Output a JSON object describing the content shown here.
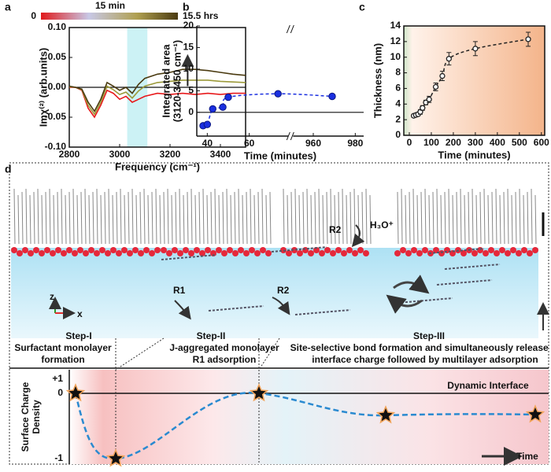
{
  "chart_data": [
    {
      "type": "line",
      "panel": "a",
      "x_label": "Frequency (cm⁻¹)",
      "y_label": "Imχ⁽²⁾ (arb.units)",
      "colorbar_labels": [
        "0",
        "15 min",
        "15.5 hrs"
      ],
      "x": [
        2800,
        2825,
        2850,
        2875,
        2900,
        2925,
        2950,
        2975,
        3000,
        3025,
        3050,
        3075,
        3100,
        3150,
        3200,
        3250,
        3300,
        3350,
        3400,
        3450,
        3500
      ],
      "series": [
        {
          "name": "0",
          "color": "#e8191b",
          "values": [
            0.0,
            0.0,
            -0.005,
            -0.035,
            -0.05,
            -0.03,
            -0.005,
            -0.01,
            -0.02,
            -0.015,
            -0.025,
            -0.02,
            -0.015,
            -0.01,
            -0.012,
            -0.01,
            -0.012,
            -0.01,
            -0.012,
            -0.01,
            -0.01
          ]
        },
        {
          "name": "15 min",
          "color": "#9c9a3a",
          "values": [
            0.001,
            0.0,
            -0.004,
            -0.03,
            -0.045,
            -0.025,
            0.002,
            -0.004,
            -0.012,
            -0.008,
            -0.018,
            -0.006,
            0.002,
            0.008,
            0.01,
            0.012,
            0.012,
            0.012,
            0.01,
            0.009,
            0.008
          ]
        },
        {
          "name": "15.5 hrs",
          "color": "#4a3a10",
          "values": [
            0.002,
            0.0,
            -0.003,
            -0.025,
            -0.04,
            -0.02,
            0.008,
            0.002,
            -0.005,
            0.0,
            -0.01,
            0.005,
            0.015,
            0.022,
            0.025,
            0.03,
            0.03,
            0.028,
            0.025,
            0.022,
            0.02
          ]
        }
      ],
      "highlight_x": [
        3030,
        3110
      ],
      "zero_line": true,
      "xlim": [
        2800,
        3500
      ],
      "xticks": [
        2800,
        3000,
        3200,
        3400
      ],
      "ylim": [
        -0.1,
        0.1
      ],
      "yticks": [
        {
          "value": -0.1,
          "label": "-0.10"
        },
        -0.05,
        {
          "value": 0,
          "label": "0.00"
        },
        0.05,
        {
          "value": 0.1,
          "label": "0.10"
        }
      ]
    },
    {
      "type": "scatter",
      "panel": "b",
      "x_label": "Time (minutes)",
      "y_label": [
        "Integrated area",
        "(3120-3450 cm⁻¹)"
      ],
      "series": [
        {
          "name": "Integrated area",
          "color": "#1a2fe0",
          "x": [
            38,
            40,
            42.6,
            47.4,
            50,
            73.7,
            969
          ],
          "values": [
            -3.1,
            -2.8,
            0.8,
            1.2,
            3.5,
            4.3,
            3.7
          ]
        }
      ],
      "zero_line": true,
      "curve": "dashed",
      "xlim": [
        35,
        984
      ],
      "xbreak": [
        79,
        950
      ],
      "xticks": [
        40,
        60,
        960,
        980
      ],
      "ylim": [
        -5.5,
        20
      ],
      "yticks": [
        0,
        5,
        10,
        15,
        20
      ]
    },
    {
      "type": "scatter",
      "panel": "c",
      "x_label": "Time (minutes)",
      "y_label": "Thickness (nm)",
      "series": [
        {
          "name": "Thickness",
          "color": "#222222",
          "x": [
            20,
            30,
            40,
            50,
            60,
            75,
            90,
            120,
            150,
            180,
            300,
            540
          ],
          "values": [
            2.5,
            2.6,
            2.7,
            3,
            3.5,
            4.2,
            4.6,
            6.2,
            7.6,
            9.8,
            11.1,
            12.3
          ],
          "errors": [
            0.2,
            0.2,
            0.2,
            0.3,
            0.3,
            0.3,
            0.4,
            0.5,
            0.6,
            0.8,
            0.9,
            0.9
          ]
        }
      ],
      "curve": "dashed",
      "xlim": [
        -25,
        615
      ],
      "xticks": [
        0,
        100,
        200,
        300,
        400,
        500,
        600
      ],
      "ylim": [
        0,
        14
      ],
      "yticks": [
        0,
        2,
        4,
        6,
        8,
        10,
        12,
        14
      ]
    }
  ],
  "panel_d": {
    "letter": "d",
    "reactions": [
      "R1",
      "R2",
      "R2",
      "H₃O⁺"
    ],
    "axes": [
      "z",
      "x"
    ],
    "steps": [
      "Step-I",
      "Step-II",
      "Step-III"
    ],
    "step_notes": [
      [
        "Surfactant monolayer",
        "formation"
      ],
      [
        "J-aggregated monolayer",
        "R1 adsorption"
      ],
      [
        "Site-selective bond formation and simultaneously release of",
        "interface charge  followed by multilayer adsorption"
      ]
    ],
    "charge_label": [
      "Surface Charge",
      "Density"
    ],
    "charge_ticks": [
      "+1",
      "0",
      "-1"
    ],
    "interface_label": "Dynamic Interface",
    "time_label": "Time"
  }
}
